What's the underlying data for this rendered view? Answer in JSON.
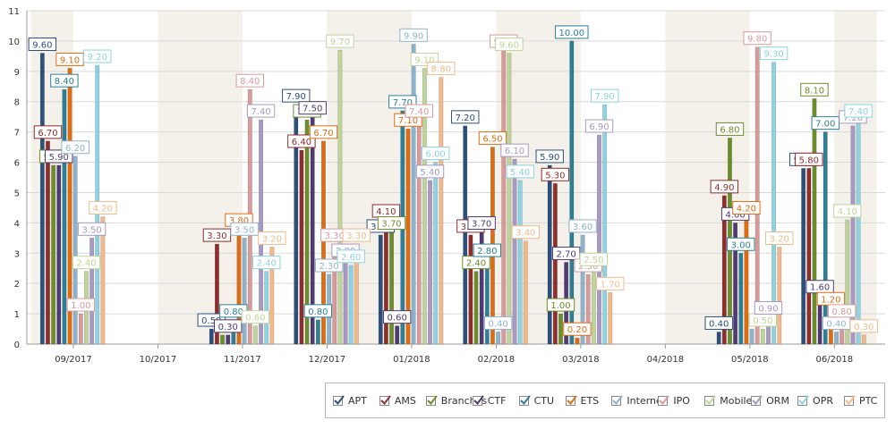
{
  "chart_data": {
    "type": "bar",
    "categories": [
      "09/2017",
      "10/2017",
      "11/2017",
      "12/2017",
      "01/2018",
      "02/2018",
      "03/2018",
      "04/2018",
      "05/2018",
      "06/2018"
    ],
    "ylim": [
      0,
      11
    ],
    "yticks": [
      0,
      1,
      2,
      3,
      4,
      5,
      6,
      7,
      8,
      9,
      10,
      11
    ],
    "grid": true,
    "legend_position": "bottom-right",
    "series": [
      {
        "name": "APT",
        "color": "#2c4f7c",
        "values": [
          9.6,
          null,
          0.5,
          7.9,
          3.6,
          7.2,
          5.9,
          null,
          0.4,
          5.8
        ]
      },
      {
        "name": "AMS",
        "color": "#8f2c2c",
        "values": [
          6.7,
          null,
          3.3,
          6.4,
          4.1,
          3.6,
          5.3,
          null,
          4.9,
          5.8
        ]
      },
      {
        "name": "Branches",
        "color": "#6b8e2a",
        "values": [
          5.9,
          null,
          0.3,
          7.4,
          3.7,
          2.4,
          1.0,
          null,
          6.8,
          8.1
        ]
      },
      {
        "name": "CTF",
        "color": "#4f3a73",
        "values": [
          5.9,
          null,
          0.3,
          7.5,
          0.6,
          3.7,
          2.7,
          null,
          4.0,
          1.6
        ]
      },
      {
        "name": "CTU",
        "color": "#2e7f96",
        "values": [
          8.4,
          null,
          0.8,
          0.8,
          7.7,
          2.8,
          10.0,
          null,
          3.0,
          7.0
        ]
      },
      {
        "name": "ETS",
        "color": "#e06c12",
        "values": [
          9.1,
          null,
          3.8,
          6.7,
          7.1,
          6.5,
          0.2,
          null,
          4.2,
          1.2
        ]
      },
      {
        "name": "Internet",
        "color": "#8fb3cc",
        "values": [
          6.2,
          null,
          3.5,
          2.3,
          9.9,
          0.4,
          3.6,
          null,
          0.5,
          0.4
        ]
      },
      {
        "name": "IPO",
        "color": "#d99a9a",
        "values": [
          1.0,
          null,
          8.4,
          3.3,
          7.4,
          9.7,
          2.3,
          null,
          9.8,
          0.8
        ]
      },
      {
        "name": "Mobile",
        "color": "#bfd49a",
        "values": [
          2.4,
          null,
          0.6,
          9.7,
          9.1,
          9.6,
          2.5,
          null,
          0.5,
          4.1
        ]
      },
      {
        "name": "ORM",
        "color": "#a898c4",
        "values": [
          3.5,
          null,
          7.4,
          2.8,
          5.4,
          6.1,
          6.9,
          null,
          0.9,
          7.2
        ]
      },
      {
        "name": "OPR",
        "color": "#8ed3e3",
        "values": [
          9.2,
          null,
          2.4,
          2.6,
          6.0,
          5.4,
          7.9,
          null,
          9.3,
          7.4
        ]
      },
      {
        "name": "PTC",
        "color": "#f4b98a",
        "values": [
          4.2,
          null,
          3.2,
          3.3,
          8.8,
          3.4,
          1.7,
          null,
          3.2,
          0.3
        ]
      }
    ],
    "data_labels": {
      "APT": [
        9.6,
        null,
        0.5,
        7.9,
        3.6,
        7.2,
        5.9,
        null,
        0.4,
        5.8
      ],
      "AMS": [
        6.7,
        null,
        3.3,
        6.4,
        4.1,
        3.6,
        5.3,
        null,
        4.9,
        5.8
      ],
      "Branches": [
        5.9,
        null,
        null,
        7.4,
        3.7,
        2.4,
        1.0,
        null,
        6.8,
        8.1
      ],
      "CTF": [
        5.9,
        null,
        0.3,
        7.5,
        0.6,
        3.7,
        2.7,
        null,
        4.0,
        1.6
      ],
      "CTU": [
        8.4,
        null,
        0.8,
        0.8,
        7.7,
        2.8,
        10.0,
        null,
        3.0,
        7.0
      ],
      "ETS": [
        9.1,
        null,
        3.8,
        6.7,
        7.1,
        6.5,
        0.2,
        null,
        4.2,
        1.2
      ],
      "Internet": [
        6.2,
        null,
        3.5,
        2.3,
        9.9,
        0.4,
        3.6,
        null,
        null,
        0.4
      ],
      "IPO": [
        1.0,
        null,
        8.4,
        3.3,
        7.4,
        9.7,
        2.3,
        null,
        9.8,
        0.8
      ],
      "Mobile": [
        2.4,
        null,
        0.6,
        9.7,
        9.1,
        9.6,
        2.5,
        null,
        0.5,
        4.1
      ],
      "ORM": [
        3.5,
        null,
        7.4,
        2.8,
        5.4,
        6.1,
        6.9,
        null,
        0.9,
        7.2
      ],
      "OPR": [
        9.2,
        null,
        2.4,
        2.6,
        6.0,
        5.4,
        7.9,
        null,
        9.3,
        7.4
      ],
      "PTC": [
        4.2,
        null,
        3.2,
        3.3,
        8.8,
        3.4,
        1.7,
        null,
        3.2,
        0.3
      ]
    }
  }
}
